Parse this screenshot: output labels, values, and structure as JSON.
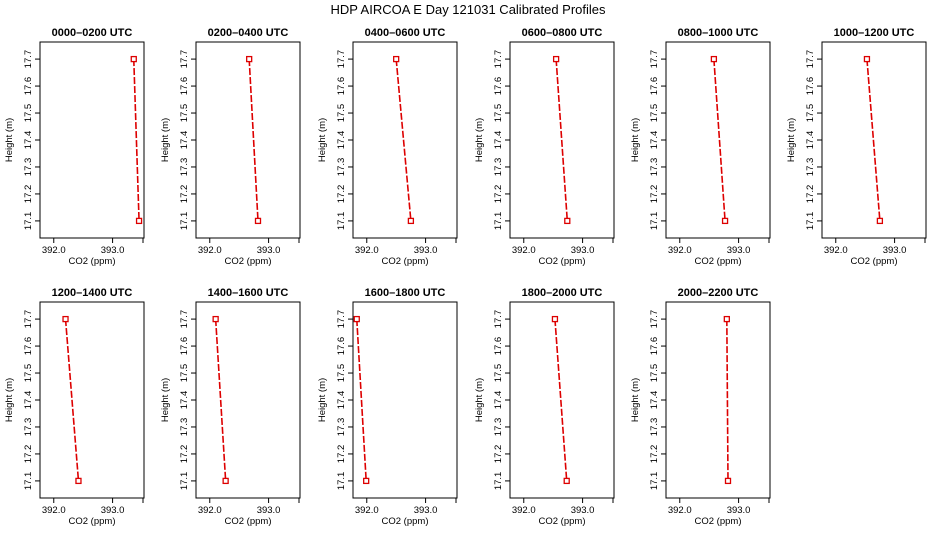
{
  "title": "HDP AIRCOA E  Day 121031  Calibrated Profiles",
  "colors": {
    "line": "#dd0000",
    "axis": "#000000",
    "background": "#ffffff"
  },
  "chart_data": [
    {
      "type": "line",
      "title": "0000–0200 UTC",
      "xlabel": "CO2 (ppm)",
      "ylabel": "Height (m)",
      "xlim": [
        391.8,
        393.5
      ],
      "ylim": [
        17.07,
        17.73
      ],
      "xticks": [
        392.0,
        393.0
      ],
      "xtick_labels": [
        "392.0",
        "393.0"
      ],
      "yticks": [
        17.1,
        17.2,
        17.3,
        17.4,
        17.5,
        17.6,
        17.7
      ],
      "series": [
        {
          "x": [
            393.36,
            393.45
          ],
          "y": [
            17.7,
            17.1
          ]
        }
      ]
    },
    {
      "type": "line",
      "title": "0200–0400 UTC",
      "xlabel": "CO2 (ppm)",
      "ylabel": "Height (m)",
      "xlim": [
        391.8,
        393.5
      ],
      "ylim": [
        17.07,
        17.73
      ],
      "xticks": [
        392.0,
        393.0
      ],
      "xtick_labels": [
        "392.0",
        "393.0"
      ],
      "yticks": [
        17.1,
        17.2,
        17.3,
        17.4,
        17.5,
        17.6,
        17.7
      ],
      "series": [
        {
          "x": [
            392.67,
            392.82
          ],
          "y": [
            17.7,
            17.1
          ]
        }
      ]
    },
    {
      "type": "line",
      "title": "0400–0600 UTC",
      "xlabel": "CO2 (ppm)",
      "ylabel": "Height (m)",
      "xlim": [
        391.8,
        393.5
      ],
      "ylim": [
        17.07,
        17.73
      ],
      "xticks": [
        392.0,
        393.0
      ],
      "xtick_labels": [
        "392.0",
        "393.0"
      ],
      "yticks": [
        17.1,
        17.2,
        17.3,
        17.4,
        17.5,
        17.6,
        17.7
      ],
      "series": [
        {
          "x": [
            392.5,
            392.75
          ],
          "y": [
            17.7,
            17.1
          ]
        }
      ]
    },
    {
      "type": "line",
      "title": "0600–0800 UTC",
      "xlabel": "CO2 (ppm)",
      "ylabel": "Height (m)",
      "xlim": [
        391.8,
        393.5
      ],
      "ylim": [
        17.07,
        17.73
      ],
      "xticks": [
        392.0,
        393.0
      ],
      "xtick_labels": [
        "392.0",
        "393.0"
      ],
      "yticks": [
        17.1,
        17.2,
        17.3,
        17.4,
        17.5,
        17.6,
        17.7
      ],
      "series": [
        {
          "x": [
            392.55,
            392.74
          ],
          "y": [
            17.7,
            17.1
          ]
        }
      ]
    },
    {
      "type": "line",
      "title": "0800–1000 UTC",
      "xlabel": "CO2 (ppm)",
      "ylabel": "Height (m)",
      "xlim": [
        391.8,
        393.5
      ],
      "ylim": [
        17.07,
        17.73
      ],
      "xticks": [
        392.0,
        393.0
      ],
      "xtick_labels": [
        "392.0",
        "393.0"
      ],
      "yticks": [
        17.1,
        17.2,
        17.3,
        17.4,
        17.5,
        17.6,
        17.7
      ],
      "series": [
        {
          "x": [
            392.58,
            392.77
          ],
          "y": [
            17.7,
            17.1
          ]
        }
      ]
    },
    {
      "type": "line",
      "title": "1000–1200 UTC",
      "xlabel": "CO2 (ppm)",
      "ylabel": "Height (m)",
      "xlim": [
        391.8,
        393.5
      ],
      "ylim": [
        17.07,
        17.73
      ],
      "xticks": [
        392.0,
        393.0
      ],
      "xtick_labels": [
        "392.0",
        "393.0"
      ],
      "yticks": [
        17.1,
        17.2,
        17.3,
        17.4,
        17.5,
        17.6,
        17.7
      ],
      "series": [
        {
          "x": [
            392.53,
            392.75
          ],
          "y": [
            17.7,
            17.1
          ]
        }
      ]
    },
    {
      "type": "line",
      "title": "1200–1400 UTC",
      "xlabel": "CO2 (ppm)",
      "ylabel": "Height (m)",
      "xlim": [
        391.8,
        393.5
      ],
      "ylim": [
        17.07,
        17.73
      ],
      "xticks": [
        392.0,
        393.0
      ],
      "xtick_labels": [
        "392.0",
        "393.0"
      ],
      "yticks": [
        17.1,
        17.2,
        17.3,
        17.4,
        17.5,
        17.6,
        17.7
      ],
      "series": [
        {
          "x": [
            392.2,
            392.42
          ],
          "y": [
            17.7,
            17.1
          ]
        }
      ]
    },
    {
      "type": "line",
      "title": "1400–1600 UTC",
      "xlabel": "CO2 (ppm)",
      "ylabel": "Height (m)",
      "xlim": [
        391.8,
        393.5
      ],
      "ylim": [
        17.07,
        17.73
      ],
      "xticks": [
        392.0,
        393.0
      ],
      "xtick_labels": [
        "392.0",
        "393.0"
      ],
      "yticks": [
        17.1,
        17.2,
        17.3,
        17.4,
        17.5,
        17.6,
        17.7
      ],
      "series": [
        {
          "x": [
            392.1,
            392.27
          ],
          "y": [
            17.7,
            17.1
          ]
        }
      ]
    },
    {
      "type": "line",
      "title": "1600–1800 UTC",
      "xlabel": "CO2 (ppm)",
      "ylabel": "Height (m)",
      "xlim": [
        391.8,
        393.5
      ],
      "ylim": [
        17.07,
        17.73
      ],
      "xticks": [
        392.0,
        393.0
      ],
      "xtick_labels": [
        "392.0",
        "393.0"
      ],
      "yticks": [
        17.1,
        17.2,
        17.3,
        17.4,
        17.5,
        17.6,
        17.7
      ],
      "series": [
        {
          "x": [
            391.83,
            391.99
          ],
          "y": [
            17.7,
            17.1
          ]
        }
      ]
    },
    {
      "type": "line",
      "title": "1800–2000 UTC",
      "xlabel": "CO2 (ppm)",
      "ylabel": "Height (m)",
      "xlim": [
        391.8,
        393.5
      ],
      "ylim": [
        17.07,
        17.73
      ],
      "xticks": [
        392.0,
        393.0
      ],
      "xtick_labels": [
        "392.0",
        "393.0"
      ],
      "yticks": [
        17.1,
        17.2,
        17.3,
        17.4,
        17.5,
        17.6,
        17.7
      ],
      "series": [
        {
          "x": [
            392.53,
            392.73
          ],
          "y": [
            17.7,
            17.1
          ]
        }
      ]
    },
    {
      "type": "line",
      "title": "2000–2200 UTC",
      "xlabel": "CO2 (ppm)",
      "ylabel": "Height (m)",
      "xlim": [
        391.8,
        393.5
      ],
      "ylim": [
        17.07,
        17.73
      ],
      "xticks": [
        392.0,
        393.0
      ],
      "xtick_labels": [
        "392.0",
        "393.0"
      ],
      "yticks": [
        17.1,
        17.2,
        17.3,
        17.4,
        17.5,
        17.6,
        17.7
      ],
      "series": [
        {
          "x": [
            392.8,
            392.82
          ],
          "y": [
            17.7,
            17.1
          ]
        }
      ]
    }
  ]
}
